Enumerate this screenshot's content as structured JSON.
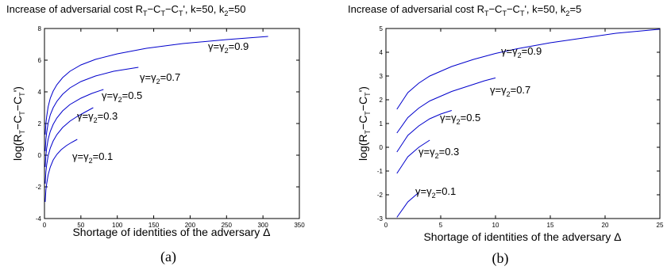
{
  "chart_data": [
    {
      "type": "line",
      "panel_caption": "(a)",
      "title_base": "Increase of adversarial cost R",
      "title_sub_T": "T",
      "title_middle": ", k=50, k",
      "title_sub_2": "2",
      "title_end": "=50",
      "xlabel": "Shortage of identities of the adversary Δ",
      "ylabel": "log(R_T−C_T−C_T')",
      "xlim": [
        0,
        350
      ],
      "ylim": [
        -4,
        8
      ],
      "xticks": [
        "0",
        "50",
        "100",
        "150",
        "200",
        "250",
        "300",
        "350"
      ],
      "yticks": [
        "-4",
        "-2",
        "0",
        "2",
        "4",
        "6",
        "8"
      ],
      "grid": false,
      "series": [
        {
          "name": "γ=γ2=0.1",
          "color": "#0000cc",
          "x": [
            1,
            2,
            3,
            5,
            8,
            12,
            17,
            23,
            30,
            37,
            45
          ],
          "y": [
            -2.95,
            -2.2,
            -1.8,
            -1.25,
            -0.75,
            -0.3,
            0.05,
            0.35,
            0.6,
            0.8,
            1.0
          ]
        },
        {
          "name": "γ=γ2=0.3",
          "color": "#0000cc",
          "x": [
            1,
            2,
            3,
            5,
            8,
            12,
            17,
            25,
            35,
            45,
            55,
            67
          ],
          "y": [
            -1.8,
            -1.05,
            -0.6,
            -0.05,
            0.45,
            0.9,
            1.3,
            1.75,
            2.15,
            2.45,
            2.7,
            3.0
          ]
        },
        {
          "name": "γ=γ2=0.5",
          "color": "#0000cc",
          "x": [
            1,
            2,
            3,
            5,
            8,
            12,
            17,
            25,
            35,
            50,
            65,
            81
          ],
          "y": [
            -0.75,
            0.0,
            0.45,
            1.0,
            1.5,
            1.95,
            2.35,
            2.8,
            3.2,
            3.6,
            3.9,
            4.15
          ]
        },
        {
          "name": "γ=γ2=0.7",
          "color": "#0000cc",
          "x": [
            1,
            2,
            3,
            5,
            8,
            12,
            17,
            25,
            35,
            50,
            70,
            95,
            129
          ],
          "y": [
            0.25,
            1.0,
            1.45,
            2.0,
            2.55,
            3.0,
            3.4,
            3.85,
            4.25,
            4.65,
            5.0,
            5.3,
            5.55
          ]
        },
        {
          "name": "γ=γ2=0.9",
          "color": "#0000cc",
          "x": [
            1,
            2,
            3,
            5,
            8,
            12,
            17,
            25,
            35,
            50,
            70,
            100,
            140,
            190,
            250,
            307
          ],
          "y": [
            1.3,
            2.0,
            2.45,
            3.05,
            3.6,
            4.05,
            4.45,
            4.9,
            5.3,
            5.7,
            6.05,
            6.4,
            6.75,
            7.05,
            7.3,
            7.5
          ]
        }
      ]
    },
    {
      "type": "line",
      "panel_caption": "(b)",
      "title_base": "Increase of adversarial cost R",
      "title_sub_T": "T",
      "title_middle": ", k=50, k",
      "title_sub_2": "2",
      "title_end": "=5",
      "xlabel": "Shortage of identities of the adversary Δ",
      "ylabel": "log(R_T−C_T−C_T')",
      "xlim": [
        0,
        25
      ],
      "ylim": [
        -3,
        5
      ],
      "xticks": [
        "0",
        "5",
        "10",
        "15",
        "20",
        "25"
      ],
      "yticks": [
        "-3",
        "-2",
        "-1",
        "0",
        "1",
        "2",
        "3",
        "4",
        "5"
      ],
      "grid": false,
      "series": [
        {
          "name": "γ=γ2=0.1",
          "color": "#0000cc",
          "x": [
            1,
            2,
            3
          ],
          "y": [
            -2.95,
            -2.3,
            -1.9
          ]
        },
        {
          "name": "γ=γ2=0.3",
          "color": "#0000cc",
          "x": [
            1,
            2,
            3,
            4
          ],
          "y": [
            -1.1,
            -0.4,
            0.0,
            0.3
          ]
        },
        {
          "name": "γ=γ2=0.5",
          "color": "#0000cc",
          "x": [
            1,
            2,
            3,
            4,
            5,
            6
          ],
          "y": [
            -0.2,
            0.5,
            0.9,
            1.2,
            1.4,
            1.55
          ]
        },
        {
          "name": "γ=γ2=0.7",
          "color": "#0000cc",
          "x": [
            1,
            2,
            3,
            4,
            5,
            6,
            7,
            8,
            9,
            10
          ],
          "y": [
            0.6,
            1.25,
            1.65,
            1.95,
            2.15,
            2.35,
            2.5,
            2.65,
            2.8,
            2.92
          ]
        },
        {
          "name": "γ=γ2=0.9",
          "color": "#0000cc",
          "x": [
            1,
            2,
            3,
            4,
            5,
            6,
            8,
            10,
            12,
            15,
            18,
            21,
            25
          ],
          "y": [
            1.6,
            2.3,
            2.7,
            3.0,
            3.2,
            3.4,
            3.7,
            3.95,
            4.15,
            4.4,
            4.6,
            4.8,
            4.97
          ]
        }
      ]
    }
  ]
}
